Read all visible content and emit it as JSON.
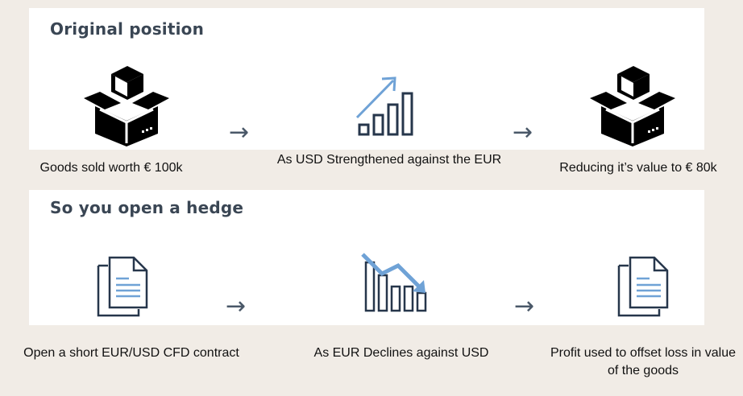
{
  "sections": {
    "original": {
      "title": "Original position",
      "steps": [
        {
          "icon": "box-icon",
          "caption": "Goods sold worth € 100k"
        },
        {
          "icon": "rising-bar-chart-icon",
          "caption": "As USD Strengthened against the EUR"
        },
        {
          "icon": "box-icon",
          "caption": "Reducing it’s value to € 80k"
        }
      ],
      "connector": "→"
    },
    "hedge": {
      "title": "So you open a hedge",
      "steps": [
        {
          "icon": "document-icon",
          "caption": "Open a short EUR/USD CFD contract"
        },
        {
          "icon": "declining-bar-chart-icon",
          "caption": "As EUR Declines against USD"
        },
        {
          "icon": "document-icon",
          "caption": "Profit used to offset loss in value of the goods"
        }
      ],
      "connector": "→"
    }
  },
  "colors": {
    "navy": "#26364b",
    "accent_blue": "#6fa2d6",
    "background": "#f1ece6"
  }
}
